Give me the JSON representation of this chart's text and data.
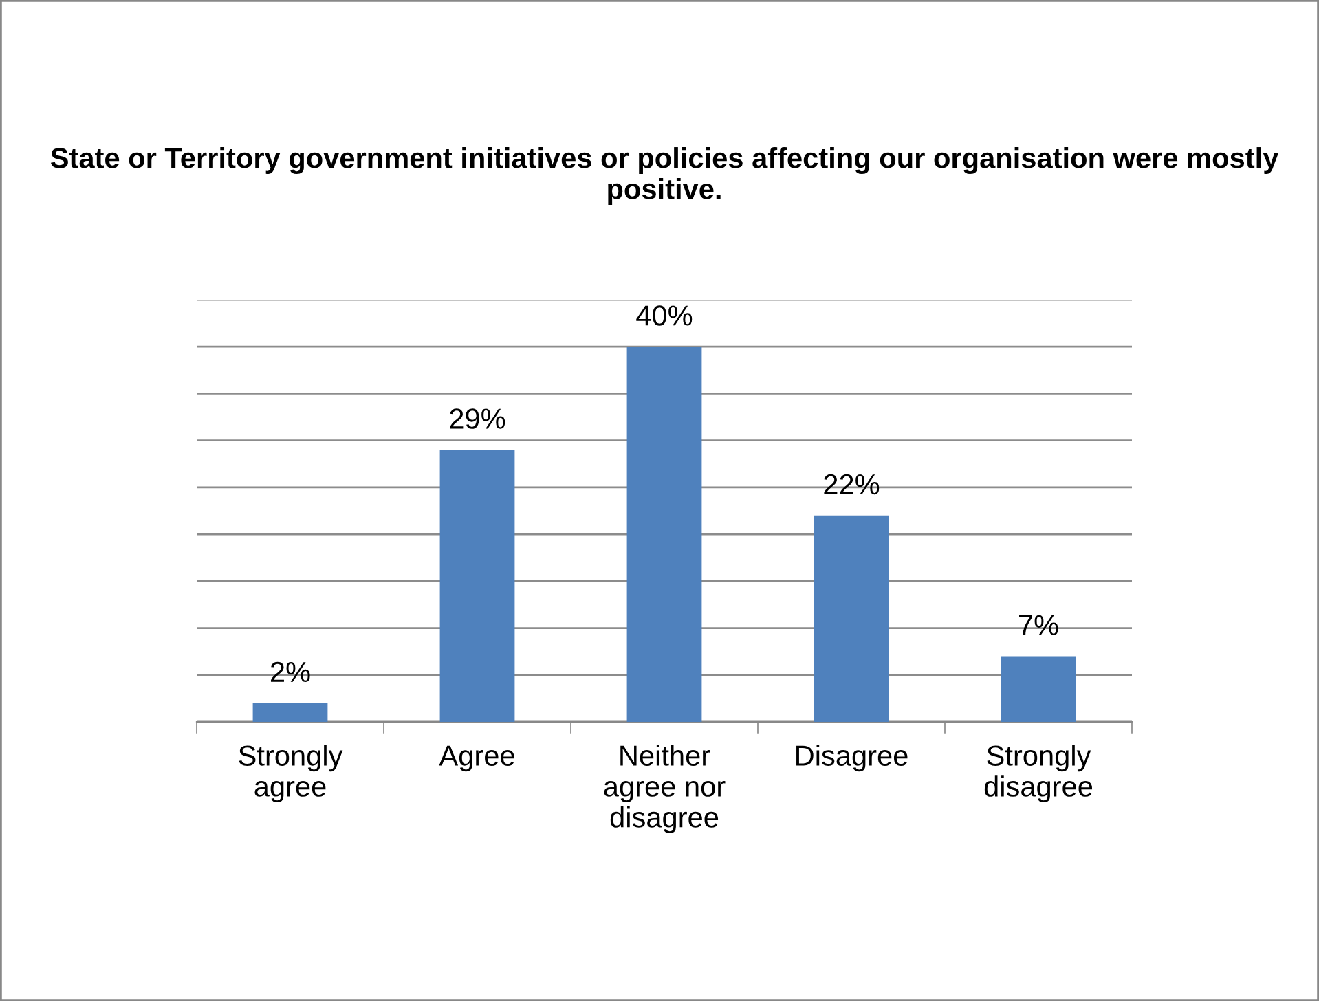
{
  "chart_data": {
    "type": "bar",
    "title": "State or Territory government initiatives or policies affecting our organisation were mostly positive.",
    "categories": [
      "Strongly agree",
      "Agree",
      "Neither agree nor disagree",
      "Disagree",
      "Strongly disagree"
    ],
    "values": [
      2,
      29,
      40,
      22,
      7
    ],
    "value_labels": [
      "2%",
      "29%",
      "40%",
      "22%",
      "7%"
    ],
    "color": "#4f81bd",
    "ylim": [
      0,
      45
    ],
    "yticks": [
      0,
      5,
      10,
      15,
      20,
      25,
      30,
      35,
      40,
      45
    ],
    "tick_labels": "x",
    "grid": "y",
    "legend": false
  }
}
